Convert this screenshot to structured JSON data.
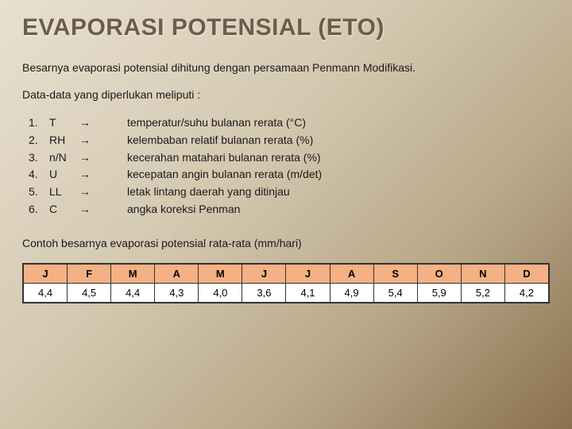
{
  "title": "EVAPORASI POTENSIAL (ETO)",
  "intro": "Besarnya evaporasi potensial dihitung dengan persamaan Penmann Modifikasi.",
  "list_intro": "Data-data yang diperlukan meliputi :",
  "arrow": "→",
  "params": [
    {
      "num": "1.",
      "sym": "T",
      "desc": "temperatur/suhu bulanan rerata (°C)"
    },
    {
      "num": "2.",
      "sym": "RH",
      "desc": "kelembaban relatif bulanan rerata (%)"
    },
    {
      "num": "3.",
      "sym": "n/N",
      "desc": "kecerahan matahari bulanan rerata (%)"
    },
    {
      "num": "4.",
      "sym": "U",
      "desc": "kecepatan angin bulanan rerata (m/det)"
    },
    {
      "num": "5.",
      "sym": "LL",
      "desc": "letak lintang daerah yang ditinjau"
    },
    {
      "num": "6.",
      "sym": "C",
      "desc": "angka koreksi Penman"
    }
  ],
  "table_caption": "Contoh besarnya evaporasi potensial rata-rata (mm/hari)",
  "table": {
    "type": "table",
    "headers": [
      "J",
      "F",
      "M",
      "A",
      "M",
      "J",
      "J",
      "A",
      "S",
      "O",
      "N",
      "D"
    ],
    "rows": [
      [
        "4,4",
        "4,5",
        "4,4",
        "4,3",
        "4,0",
        "3,6",
        "4,1",
        "4,9",
        "5,4",
        "5,9",
        "5,2",
        "4,2"
      ]
    ],
    "header_bg": "#f4b183",
    "cell_bg": "#ffffff",
    "border_color": "#333333",
    "font_size": 13
  },
  "colors": {
    "title_color": "#6b5d4a",
    "text_color": "#1a1a1a",
    "bg_gradient_from": "#e8e0d0",
    "bg_gradient_to": "#8a7050"
  },
  "typography": {
    "title_fontsize": 30,
    "body_fontsize": 14,
    "font_family": "Arial"
  }
}
